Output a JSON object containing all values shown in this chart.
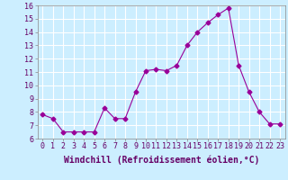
{
  "x": [
    0,
    1,
    2,
    3,
    4,
    5,
    6,
    7,
    8,
    9,
    10,
    11,
    12,
    13,
    14,
    15,
    16,
    17,
    18,
    19,
    20,
    21,
    22,
    23
  ],
  "y": [
    7.8,
    7.5,
    6.5,
    6.5,
    6.5,
    6.5,
    8.3,
    7.5,
    7.5,
    9.5,
    11.1,
    11.2,
    11.1,
    11.5,
    13.0,
    14.0,
    14.7,
    15.3,
    15.8,
    11.5,
    9.5,
    8.0,
    7.1,
    7.1
  ],
  "xlim": [
    -0.5,
    23.5
  ],
  "ylim": [
    6,
    16
  ],
  "yticks": [
    6,
    7,
    8,
    9,
    10,
    11,
    12,
    13,
    14,
    15,
    16
  ],
  "xticks": [
    0,
    1,
    2,
    3,
    4,
    5,
    6,
    7,
    8,
    9,
    10,
    11,
    12,
    13,
    14,
    15,
    16,
    17,
    18,
    19,
    20,
    21,
    22,
    23
  ],
  "xlabel": "Windchill (Refroidissement éolien,°C)",
  "line_color": "#990099",
  "marker": "D",
  "marker_size": 2.5,
  "bg_color": "#cceeff",
  "grid_color": "#aaddcc",
  "label_fontsize": 7,
  "tick_fontsize": 6
}
